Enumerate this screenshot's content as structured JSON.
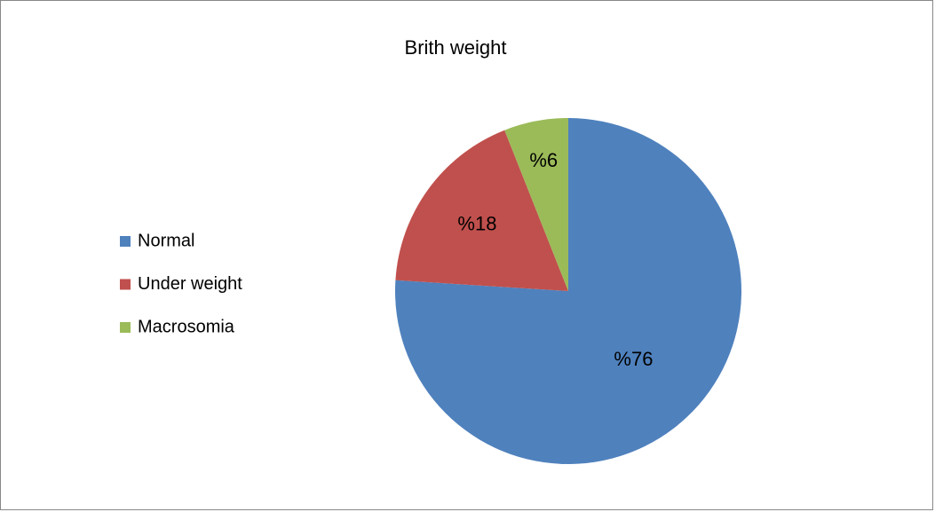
{
  "chart_data": {
    "type": "pie",
    "title": "Brith weight",
    "categories": [
      "Normal",
      "Under weight",
      "Macrosomia"
    ],
    "values": [
      76,
      18,
      6
    ],
    "value_labels": [
      "%76",
      "%18",
      "%6"
    ],
    "colors": [
      "#4f81bd",
      "#c0504d",
      "#9bbb59"
    ],
    "legend": "left"
  }
}
